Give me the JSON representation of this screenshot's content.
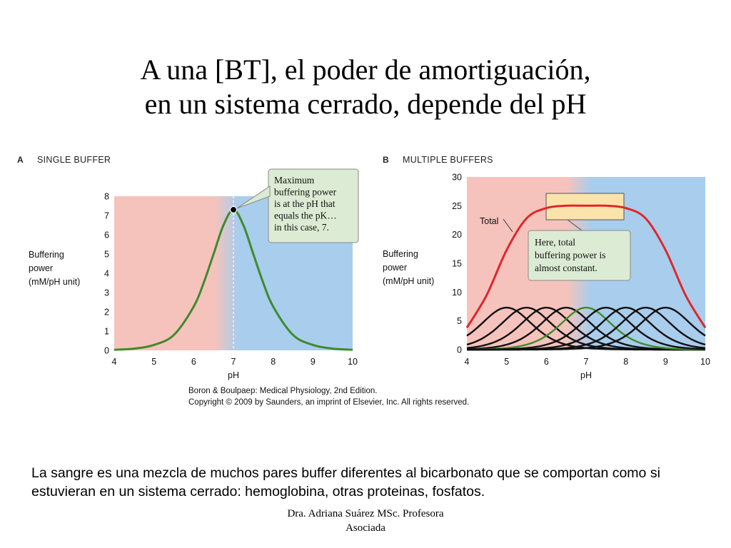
{
  "slide": {
    "title_line1": "A una [BT], el poder de amortiguación,",
    "title_line2": "en un sistema cerrado, depende del pH",
    "body_text": "La sangre es una mezcla de muchos pares buffer diferentes al bicarbonato que se comportan como si estuvieran en un sistema cerrado:  hemoglobina, otras proteinas, fosfatos.",
    "footer_line1": "Dra. Adriana Suárez MSc.  Profesora",
    "footer_line2": "Asociada"
  },
  "figure": {
    "credit_line1": "Boron & Boulpaep: Medical Physiology, 2nd Edition.",
    "credit_line2": "Copyright © 2009 by Saunders, an imprint of Elsevier, Inc. All rights reserved."
  },
  "colors": {
    "acid_region": "#f6c3bc",
    "base_region": "#a9cdec",
    "single_buffer_curve": "#3f8a2c",
    "total_curve": "#e0262b",
    "buffer_curves": "#111111",
    "highlight_buffer_curve": "#3f8a2c",
    "note_box": "#dcebd3",
    "plateau_box": "#fbe3ac"
  },
  "chart_data": [
    {
      "type": "line",
      "panel_letter": "A",
      "panel_title": "SINGLE BUFFER",
      "xlabel": "pH",
      "ylabel_lines": [
        "Buffering",
        "power",
        "(mM/pH unit)"
      ],
      "xlim": [
        4,
        10
      ],
      "ylim": [
        0,
        8
      ],
      "xticks": [
        4,
        5,
        6,
        7,
        8,
        9,
        10
      ],
      "yticks": [
        0,
        1,
        2,
        3,
        4,
        5,
        6,
        7,
        8
      ],
      "grid": false,
      "background": {
        "acid_range": [
          4,
          7
        ],
        "base_range": [
          7,
          10
        ]
      },
      "pK": 7,
      "peak": {
        "x": 7,
        "y": 7.3
      },
      "series": [
        {
          "values_x": [
            4,
            4.5,
            5,
            5.5,
            6,
            6.25,
            6.5,
            6.75,
            7,
            7.25,
            7.5,
            7.75,
            8,
            8.5,
            9,
            9.5,
            10
          ],
          "values_y": [
            0.03,
            0.09,
            0.28,
            0.8,
            2.27,
            3.5,
            5.0,
            6.5,
            7.3,
            6.5,
            5.0,
            3.5,
            2.27,
            0.8,
            0.28,
            0.09,
            0.03
          ]
        }
      ],
      "annotation": [
        "Maximum",
        "buffering power",
        "is at the pH that",
        "equals the pK…",
        "in this case, 7."
      ]
    },
    {
      "type": "line",
      "panel_letter": "B",
      "panel_title": "MULTIPLE BUFFERS",
      "xlabel": "pH",
      "ylabel_lines": [
        "Buffering",
        "power",
        "(mM/pH unit)"
      ],
      "xlim": [
        4,
        10
      ],
      "ylim": [
        0,
        30
      ],
      "xticks": [
        4,
        5,
        6,
        7,
        8,
        9,
        10
      ],
      "yticks": [
        0,
        5,
        10,
        15,
        20,
        25,
        30
      ],
      "grid": false,
      "background": {
        "acid_range": [
          4,
          7
        ],
        "base_range": [
          7,
          10
        ]
      },
      "individual_buffer_pKs": [
        5,
        5.5,
        6,
        6.5,
        7,
        7.5,
        8,
        8.5,
        9
      ],
      "individual_buffer_peak": 7.3,
      "highlighted_pK": 7,
      "series": [
        {
          "name": "Total",
          "values_x": [
            4,
            4.5,
            5,
            5.5,
            6,
            6.5,
            7,
            7.5,
            8,
            8.5,
            9,
            9.5,
            10
          ],
          "values_y": [
            3.8,
            9.5,
            17.3,
            22.8,
            24.6,
            25.0,
            25.0,
            25.0,
            24.6,
            22.8,
            17.3,
            9.5,
            3.8
          ]
        }
      ],
      "annotation": [
        "Here, total",
        "buffering power is",
        "almost constant."
      ]
    }
  ]
}
